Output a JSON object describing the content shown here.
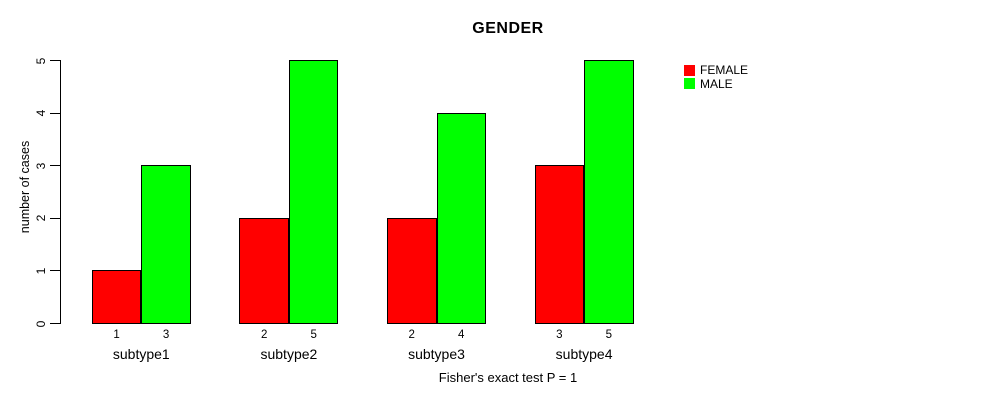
{
  "chart_data": {
    "type": "bar",
    "title": "GENDER",
    "ylabel": "number of cases",
    "xlabel": "",
    "caption": "Fisher's exact test P = 1",
    "categories": [
      "subtype1",
      "subtype2",
      "subtype3",
      "subtype4"
    ],
    "series": [
      {
        "name": "FEMALE",
        "color": "#FF0000",
        "values": [
          1,
          2,
          2,
          3
        ]
      },
      {
        "name": "MALE",
        "color": "#00FF00",
        "values": [
          3,
          5,
          4,
          5
        ]
      }
    ],
    "bar_value_labels": [
      [
        1,
        3
      ],
      [
        2,
        5
      ],
      [
        2,
        4
      ],
      [
        3,
        5
      ]
    ],
    "ylim": [
      0,
      5
    ],
    "yticks": [
      0,
      1,
      2,
      3,
      4,
      5
    ],
    "legend_position": "right",
    "grid": false,
    "background_color": "#FFFFFF",
    "axis_color": "#000000",
    "text_color": "#000000"
  }
}
